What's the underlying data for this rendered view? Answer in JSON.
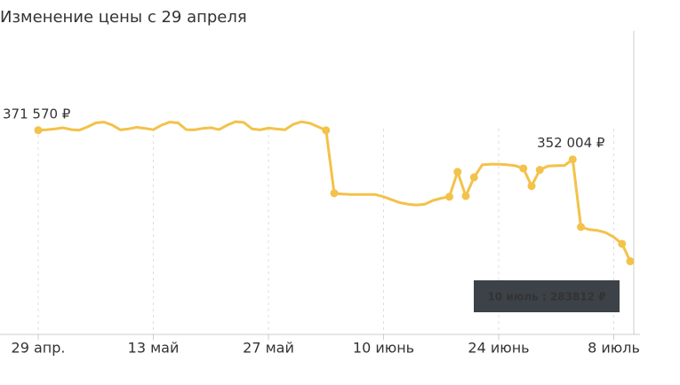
{
  "chart_data": {
    "type": "line",
    "title": "Изменение цены с 29 апреля",
    "categories": [
      "29 апр.",
      null,
      null,
      null,
      null,
      null,
      null,
      null,
      null,
      null,
      null,
      null,
      null,
      null,
      "13 май",
      null,
      null,
      null,
      null,
      null,
      null,
      null,
      null,
      null,
      null,
      null,
      null,
      null,
      "27 май",
      null,
      null,
      null,
      null,
      null,
      null,
      null,
      null,
      null,
      null,
      null,
      null,
      null,
      "10 июнь",
      null,
      null,
      null,
      null,
      null,
      null,
      null,
      null,
      null,
      null,
      null,
      null,
      null,
      "24 июнь",
      null,
      null,
      null,
      null,
      null,
      null,
      null,
      null,
      null,
      null,
      null,
      null,
      null,
      "8 июль",
      null,
      null
    ],
    "values": [
      371570,
      371900,
      372400,
      373200,
      372000,
      371600,
      373800,
      376500,
      377000,
      375000,
      371800,
      372500,
      373500,
      372800,
      371900,
      375000,
      377000,
      376500,
      372000,
      371800,
      372800,
      373200,
      372000,
      375000,
      377300,
      376800,
      372500,
      371800,
      373000,
      372400,
      371900,
      375500,
      377200,
      376300,
      374000,
      371500,
      329400,
      328800,
      328500,
      328500,
      328500,
      328500,
      327000,
      325000,
      323000,
      322000,
      321500,
      322000,
      324500,
      326000,
      327000,
      343650,
      327500,
      340000,
      348400,
      348800,
      348800,
      348400,
      347800,
      346000,
      334200,
      345000,
      347500,
      347800,
      348000,
      352004,
      306800,
      305000,
      304500,
      303000,
      300000,
      295500,
      283812
    ],
    "value_labels": [
      "371 570 ₽",
      null,
      null,
      null,
      null,
      null,
      null,
      null,
      null,
      null,
      null,
      null,
      null,
      null,
      null,
      null,
      null,
      null,
      null,
      null,
      null,
      null,
      null,
      null,
      null,
      null,
      null,
      null,
      null,
      null,
      null,
      null,
      null,
      null,
      null,
      null,
      null,
      null,
      null,
      null,
      null,
      null,
      null,
      null,
      null,
      null,
      null,
      null,
      null,
      null,
      null,
      null,
      null,
      null,
      null,
      null,
      null,
      null,
      null,
      null,
      null,
      null,
      null,
      null,
      null,
      "352 004 ₽",
      null,
      null,
      null,
      null,
      null,
      null,
      null
    ],
    "tooltip": "10 июль : 283812 ₽",
    "color": "#f3c24a",
    "ylim": [
      236000,
      435000
    ],
    "grid": true
  }
}
